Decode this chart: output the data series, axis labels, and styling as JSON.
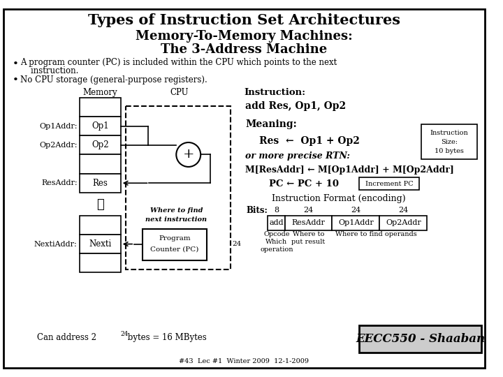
{
  "title1": "Types of Instruction Set Architectures",
  "title2": "Memory-To-Memory Machines:",
  "title3": "The 3-Address Machine",
  "bullet1a": "A program counter (PC) is included within the CPU which points to the next",
  "bullet1b": "    instruction.",
  "bullet2": "No CPU storage (general-purpose registers).",
  "mem_label": "Memory",
  "cpu_label": "CPU",
  "instr_label": "Instruction:",
  "instr_text": "add Res, Op1, Op2",
  "meaning_label": "Meaning:",
  "res_eq": "Res  ←  Op1 + Op2",
  "rtn_label": "or more precise RTN:",
  "rtn_eq": "M[ResAddr] ← M[Op1Addr] + M[Op2Addr]",
  "pc_eq": "PC ← PC + 10",
  "inc_pc": "Increment PC",
  "format_label": "Instruction Format (encoding)",
  "bits_label": "Bits:",
  "bits_values": [
    "8",
    "24",
    "24",
    "24"
  ],
  "field_labels": [
    "add",
    "ResAddr",
    "Op1Addr",
    "Op2Addr"
  ],
  "opcode_note1": "Opcode",
  "opcode_note2": "Which",
  "opcode_note3": "operation",
  "result_note1": "Where to",
  "result_note2": "put result",
  "operands_note": "Where to find operands",
  "addr_text": "Can address 2",
  "addr_exp": "24",
  "addr_rest": " bytes = 16 MBytes",
  "eecc_text": "EECC550 - Shaaban",
  "footer": "#43  Lec #1  Winter 2009  12-1-2009",
  "bg_color": "#ffffff"
}
